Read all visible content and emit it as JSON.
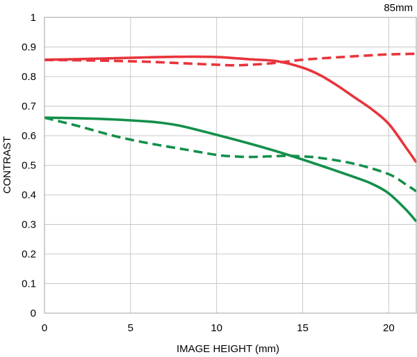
{
  "chart_data": {
    "type": "line",
    "corner_label": "85mm",
    "xlabel": "IMAGE HEIGHT (mm)",
    "ylabel": "CONTRAST",
    "xlim": [
      0,
      21.6
    ],
    "ylim": [
      0,
      1
    ],
    "x_ticks": [
      0,
      5,
      10,
      15,
      20
    ],
    "y_ticks": [
      0,
      0.1,
      0.2,
      0.3,
      0.4,
      0.5,
      0.6,
      0.7,
      0.8,
      0.9,
      1
    ],
    "y_tick_labels": [
      "0",
      "0.1",
      "0.2",
      "0.3",
      "0.4",
      "0.5",
      "0.6",
      "0.7",
      "0.8",
      "0.9",
      "1"
    ],
    "grid": true,
    "legend": "none",
    "series": [
      {
        "color": "#e8343c",
        "dash": "solid",
        "points": [
          [
            0,
            0.857
          ],
          [
            2,
            0.859
          ],
          [
            4,
            0.862
          ],
          [
            6,
            0.865
          ],
          [
            8,
            0.867
          ],
          [
            10,
            0.866
          ],
          [
            12,
            0.858
          ],
          [
            13.5,
            0.852
          ],
          [
            15,
            0.83
          ],
          [
            16,
            0.805
          ],
          [
            17,
            0.77
          ],
          [
            18,
            0.73
          ],
          [
            19,
            0.69
          ],
          [
            20,
            0.64
          ],
          [
            21,
            0.56
          ],
          [
            21.6,
            0.51
          ]
        ]
      },
      {
        "color": "#e8343c",
        "dash": "dashed",
        "points": [
          [
            0,
            0.856
          ],
          [
            2,
            0.855
          ],
          [
            4,
            0.853
          ],
          [
            6,
            0.85
          ],
          [
            8,
            0.845
          ],
          [
            10,
            0.84
          ],
          [
            11,
            0.838
          ],
          [
            12,
            0.84
          ],
          [
            13,
            0.844
          ],
          [
            14,
            0.85
          ],
          [
            15,
            0.857
          ],
          [
            17,
            0.865
          ],
          [
            19,
            0.872
          ],
          [
            20,
            0.875
          ],
          [
            21.6,
            0.877
          ]
        ]
      },
      {
        "color": "#13904a",
        "dash": "solid",
        "points": [
          [
            0,
            0.661
          ],
          [
            2,
            0.659
          ],
          [
            4,
            0.655
          ],
          [
            6,
            0.648
          ],
          [
            7,
            0.642
          ],
          [
            8,
            0.632
          ],
          [
            10,
            0.603
          ],
          [
            12,
            0.572
          ],
          [
            14,
            0.538
          ],
          [
            16,
            0.5
          ],
          [
            18,
            0.46
          ],
          [
            19,
            0.438
          ],
          [
            20,
            0.405
          ],
          [
            21,
            0.35
          ],
          [
            21.6,
            0.31
          ]
        ]
      },
      {
        "color": "#13904a",
        "dash": "dashed",
        "points": [
          [
            0,
            0.661
          ],
          [
            2,
            0.632
          ],
          [
            4,
            0.6
          ],
          [
            6,
            0.575
          ],
          [
            8,
            0.555
          ],
          [
            10,
            0.535
          ],
          [
            11,
            0.53
          ],
          [
            12,
            0.528
          ],
          [
            13,
            0.53
          ],
          [
            14,
            0.532
          ],
          [
            15,
            0.53
          ],
          [
            16,
            0.525
          ],
          [
            18,
            0.505
          ],
          [
            20,
            0.47
          ],
          [
            21,
            0.435
          ],
          [
            21.6,
            0.412
          ]
        ]
      }
    ]
  }
}
